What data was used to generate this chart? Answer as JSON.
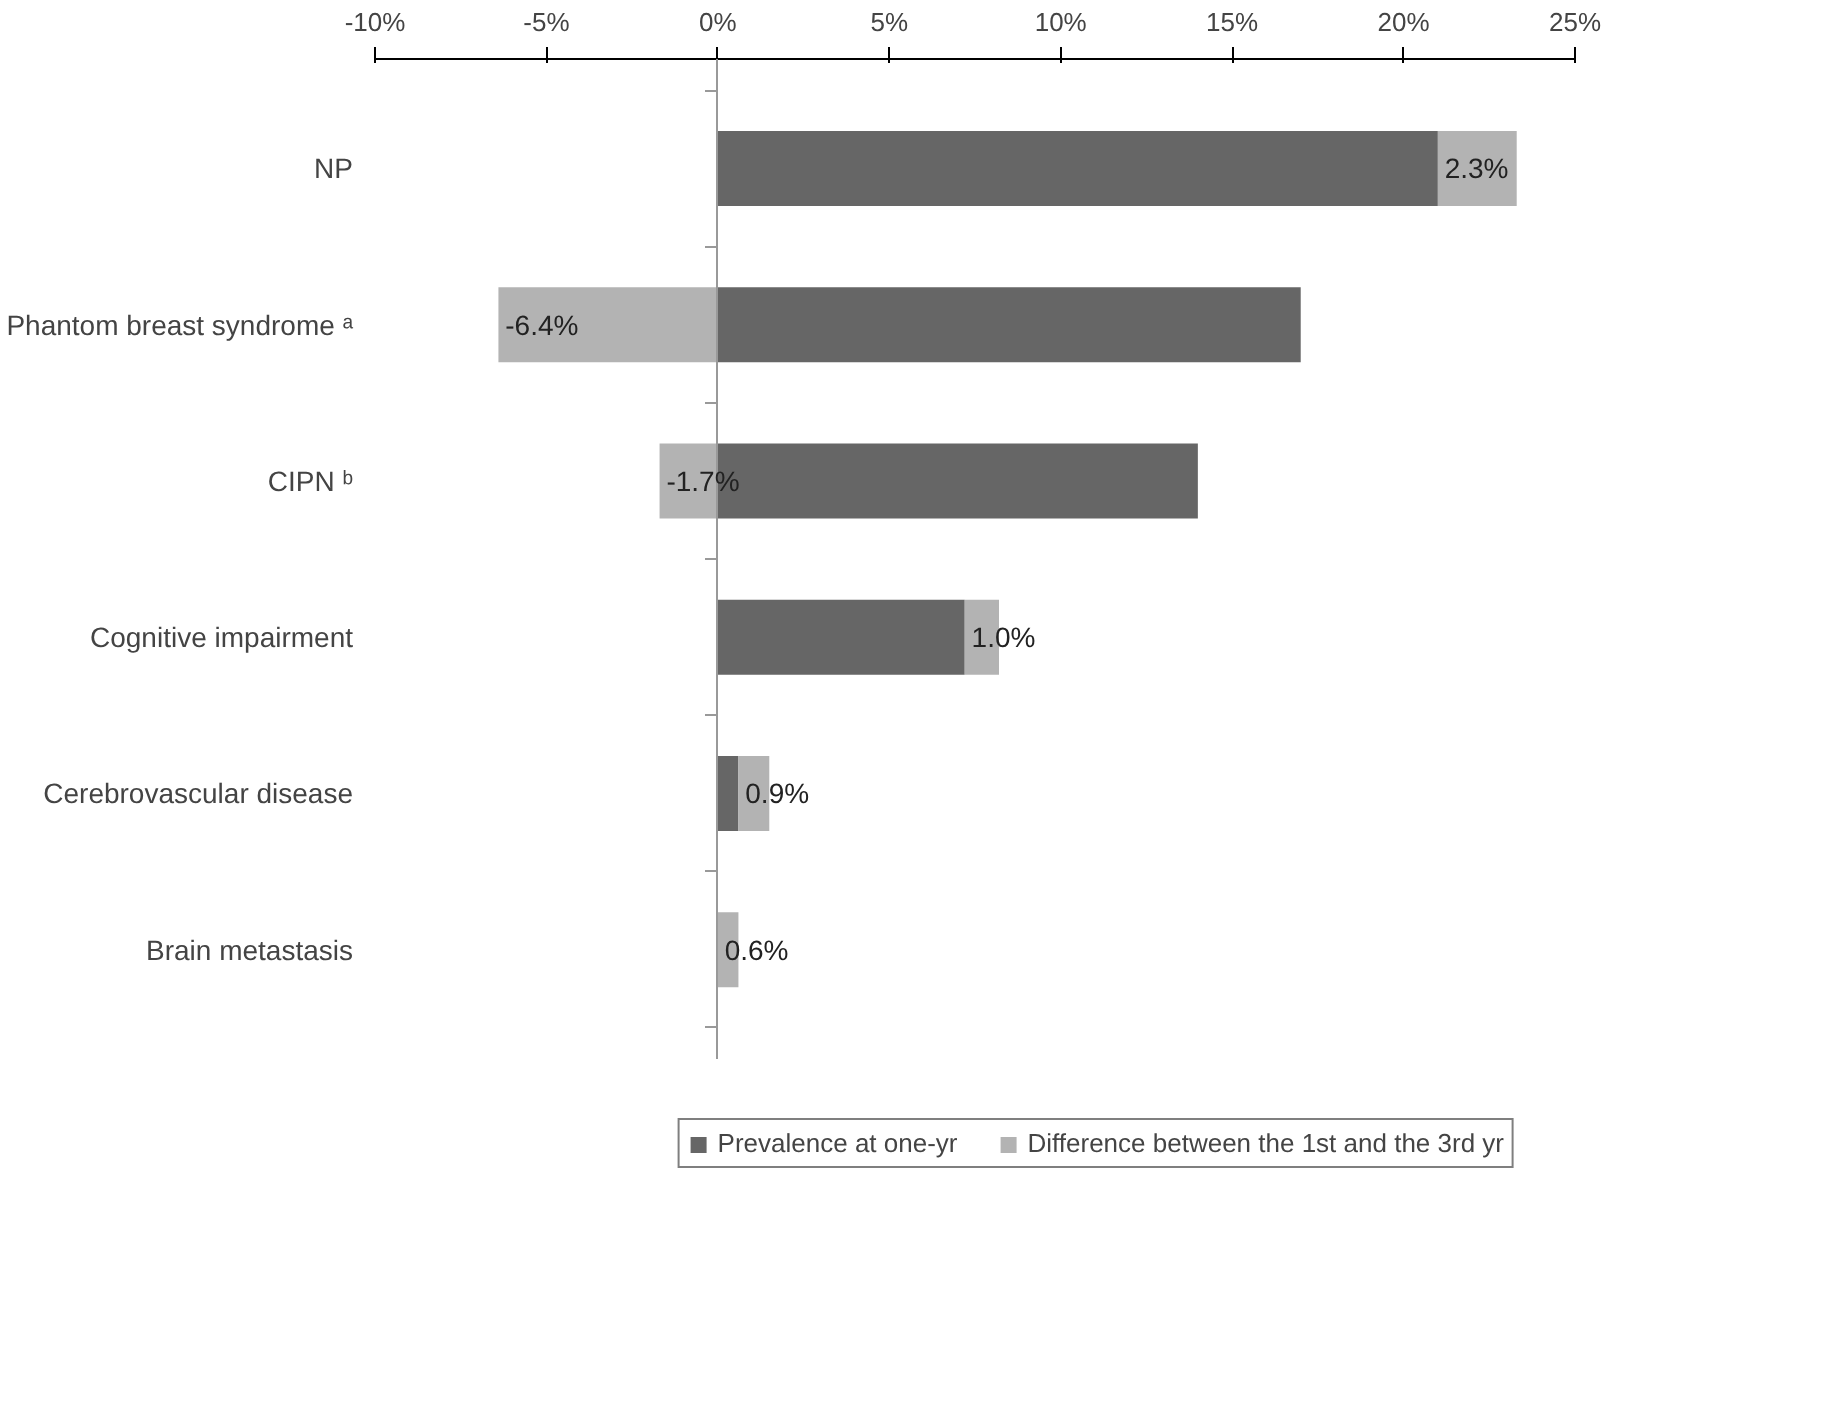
{
  "chart_data": {
    "type": "bar",
    "orientation": "horizontal",
    "stacked": true,
    "categories": [
      "NP",
      "Phantom breast syndrome ᵃ",
      "CIPN ᵇ",
      "Cognitive impairment",
      "Cerebrovascular disease",
      "Brain metastasis"
    ],
    "series": [
      {
        "name": "Prevalence at one-yr",
        "color": "#666666",
        "values": [
          21.0,
          17.0,
          14.0,
          7.2,
          0.6,
          0
        ]
      },
      {
        "name": "Difference between the 1st and the 3rd yr",
        "color": "#b3b3b3",
        "values": [
          2.3,
          -6.4,
          -1.7,
          1.0,
          0.9,
          0.6
        ],
        "value_labels": [
          "2.3%",
          "-6.4%",
          "-1.7%",
          "1.0%",
          "0.9%",
          "0.6%"
        ]
      }
    ],
    "xlim": [
      -10,
      25
    ],
    "xticks": [
      {
        "value": -10,
        "label": "-10%"
      },
      {
        "value": -5,
        "label": "-5%"
      },
      {
        "value": 0,
        "label": "0%"
      },
      {
        "value": 5,
        "label": "5%"
      },
      {
        "value": 10,
        "label": "10%"
      },
      {
        "value": 15,
        "label": "15%"
      },
      {
        "value": 20,
        "label": "20%"
      },
      {
        "value": 25,
        "label": "25%"
      }
    ],
    "legend": "bottom"
  }
}
